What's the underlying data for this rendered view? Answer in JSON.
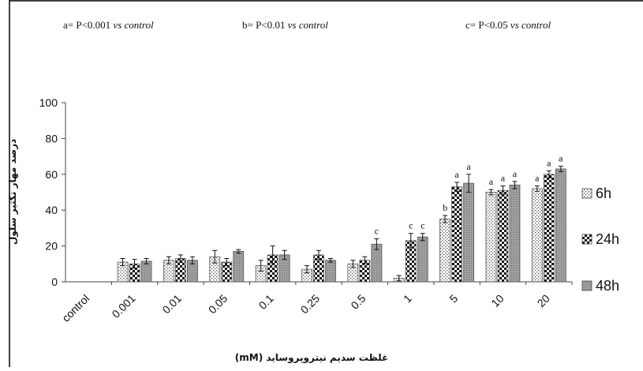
{
  "notes": {
    "a_prefix": "a= P<0.001 ",
    "b_prefix": "b= P<0.01 ",
    "c_prefix": "c= P<0.05 ",
    "vs": "vs control"
  },
  "legend": [
    "6h",
    "24h",
    "48h"
  ],
  "chart_data": {
    "type": "bar",
    "title": "",
    "xlabel": "غلظت سدیم نیتروپروساید (mM)",
    "ylabel": "درصد مهار تکثیر سلول",
    "ylim": [
      0,
      100
    ],
    "yticks": [
      "0",
      "20",
      "40",
      "60",
      "80",
      "100"
    ],
    "grid": false,
    "legend_position": "right",
    "categories": [
      "control",
      "0.001",
      "0.01",
      "0.05",
      "0.1",
      "0.25",
      "0.5",
      "1",
      "5",
      "10",
      "20"
    ],
    "series": [
      {
        "name": "6h",
        "pattern": "dots",
        "values": [
          0,
          11,
          12,
          14,
          9,
          7,
          10,
          2,
          35,
          50,
          52
        ],
        "errors": [
          0,
          2,
          2,
          3.5,
          3,
          2,
          2,
          1.5,
          2,
          1.5,
          1.5
        ],
        "sig": [
          "",
          "",
          "",
          "",
          "",
          "",
          "",
          "",
          "b",
          "a",
          "a"
        ]
      },
      {
        "name": "24h",
        "pattern": "checker",
        "values": [
          0,
          10,
          13,
          11,
          15,
          15,
          12,
          23,
          53,
          51,
          60
        ],
        "errors": [
          0,
          2.5,
          2,
          2,
          5,
          2.5,
          2,
          4,
          2.5,
          2.5,
          2
        ],
        "sig": [
          "",
          "",
          "",
          "",
          "",
          "",
          "",
          "c",
          "a",
          "a",
          "a"
        ]
      },
      {
        "name": "48h",
        "pattern": "gray",
        "values": [
          0,
          11.5,
          12,
          17,
          15,
          12,
          21,
          25,
          55,
          54,
          63
        ],
        "errors": [
          0,
          1.5,
          2,
          1,
          2.5,
          1,
          3,
          2,
          5,
          2,
          1.5
        ],
        "sig": [
          "",
          "",
          "",
          "",
          "",
          "",
          "c",
          "c",
          "a",
          "a",
          "a"
        ]
      }
    ]
  }
}
